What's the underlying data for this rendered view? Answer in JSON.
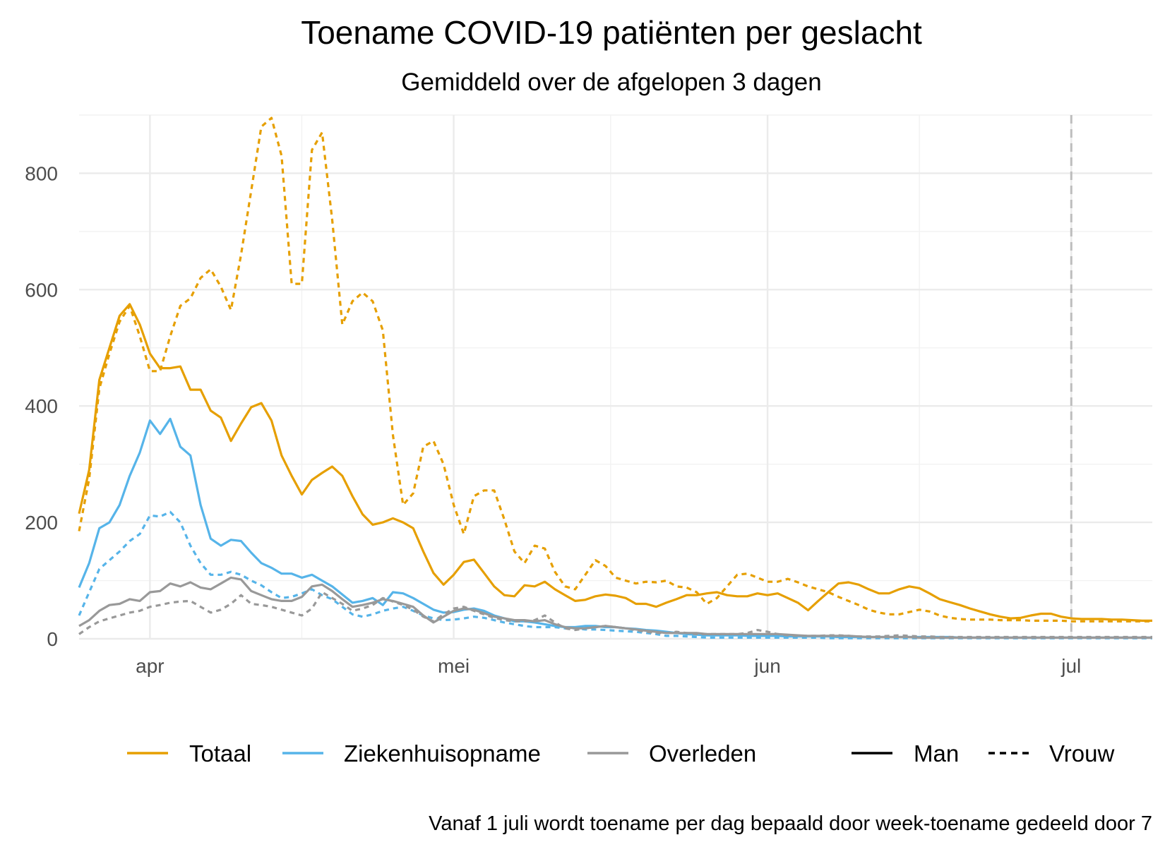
{
  "chart_data": {
    "type": "line",
    "title": "Toename COVID-19 patiënten per geslacht",
    "subtitle": "Gemiddeld over de afgelopen 3 dagen",
    "caption": "Vanaf 1 juli wordt toename per dag bepaald door week-toename gedeeld door 7",
    "xlabel": "",
    "ylabel": "",
    "ylim": [
      0,
      900
    ],
    "y_ticks": [
      0,
      200,
      400,
      600,
      800
    ],
    "x_axis": {
      "type": "date",
      "range": [
        "2020-03-25",
        "2020-07-09"
      ],
      "ticks": [
        {
          "date": "2020-04-01",
          "label": "apr"
        },
        {
          "date": "2020-05-01",
          "label": "mei"
        },
        {
          "date": "2020-06-01",
          "label": "jun"
        },
        {
          "date": "2020-07-01",
          "label": "jul"
        }
      ],
      "reference_line": "2020-07-01"
    },
    "grid": true,
    "legend_position": "bottom",
    "legend": {
      "color": [
        {
          "label": "Totaal",
          "color": "#E69F00"
        },
        {
          "label": "Ziekenhuisopname",
          "color": "#56B4E9"
        },
        {
          "label": "Overleden",
          "color": "#999999"
        }
      ],
      "linetype": [
        {
          "label": "Man",
          "dash": "solid"
        },
        {
          "label": "Vrouw",
          "dash": "dashed"
        }
      ]
    },
    "series": [
      {
        "name": "Totaal",
        "linetype": "Man",
        "color": "#E69F00",
        "dash": "solid",
        "start_date": "2020-03-25",
        "values": [
          215,
          290,
          445,
          500,
          555,
          575,
          540,
          490,
          465,
          465,
          468,
          428,
          428,
          392,
          380,
          340,
          370,
          398,
          405,
          375,
          315,
          280,
          248,
          273,
          285,
          296,
          280,
          245,
          214,
          196,
          200,
          207,
          200,
          190,
          150,
          113,
          93,
          110,
          132,
          136,
          113,
          90,
          75,
          73,
          92,
          90,
          98,
          85,
          75,
          65,
          67,
          73,
          76,
          74,
          70,
          60,
          60,
          55,
          62,
          68,
          75,
          75,
          78,
          80,
          75,
          73,
          73,
          78,
          75,
          78,
          70,
          62,
          49,
          65,
          80,
          95,
          97,
          93,
          85,
          78,
          78,
          85,
          90,
          87,
          78,
          68,
          63,
          58,
          52,
          47,
          42,
          38,
          35,
          36,
          40,
          43,
          43,
          38,
          35,
          34,
          34,
          34,
          33,
          33,
          32,
          31,
          31
        ]
      },
      {
        "name": "Totaal",
        "linetype": "Vrouw",
        "color": "#E69F00",
        "dash": "dashed",
        "start_date": "2020-03-25",
        "values": [
          185,
          275,
          430,
          490,
          545,
          572,
          520,
          460,
          460,
          520,
          572,
          585,
          620,
          635,
          605,
          565,
          660,
          770,
          880,
          895,
          830,
          610,
          610,
          840,
          870,
          720,
          540,
          580,
          595,
          580,
          530,
          350,
          230,
          250,
          330,
          340,
          300,
          230,
          180,
          245,
          255,
          255,
          205,
          150,
          130,
          160,
          155,
          115,
          90,
          85,
          110,
          135,
          125,
          105,
          100,
          95,
          98,
          97,
          100,
          90,
          88,
          80,
          60,
          70,
          90,
          110,
          112,
          105,
          98,
          98,
          103,
          97,
          90,
          85,
          80,
          72,
          65,
          58,
          50,
          45,
          42,
          42,
          46,
          50,
          47,
          40,
          36,
          34,
          33,
          33,
          33,
          32,
          32,
          32,
          31,
          31,
          31,
          31,
          30,
          30,
          30,
          30,
          30,
          30,
          30,
          30,
          30
        ]
      },
      {
        "name": "Ziekenhuisopname",
        "linetype": "Man",
        "color": "#56B4E9",
        "dash": "solid",
        "start_date": "2020-03-25",
        "values": [
          88,
          130,
          190,
          200,
          230,
          280,
          320,
          375,
          352,
          378,
          330,
          315,
          230,
          172,
          160,
          170,
          168,
          148,
          130,
          122,
          112,
          112,
          105,
          110,
          100,
          90,
          76,
          62,
          65,
          70,
          58,
          80,
          78,
          70,
          60,
          50,
          45,
          46,
          50,
          52,
          48,
          40,
          35,
          30,
          30,
          28,
          25,
          22,
          20,
          20,
          22,
          22,
          20,
          20,
          18,
          17,
          15,
          14,
          12,
          10,
          8,
          7,
          6,
          6,
          6,
          6,
          5,
          5,
          5,
          5,
          4,
          4,
          4,
          4,
          4,
          3,
          3,
          3,
          3,
          3,
          3,
          3,
          3,
          3,
          3,
          3,
          3,
          2,
          2,
          2,
          2,
          2,
          2,
          2,
          2,
          2,
          2,
          2,
          2,
          2,
          2,
          2,
          2,
          2,
          2,
          2,
          2
        ]
      },
      {
        "name": "Ziekenhuisopname",
        "linetype": "Vrouw",
        "color": "#56B4E9",
        "dash": "dashed",
        "start_date": "2020-03-25",
        "values": [
          40,
          80,
          120,
          135,
          150,
          168,
          180,
          212,
          210,
          218,
          200,
          160,
          130,
          110,
          110,
          115,
          110,
          100,
          92,
          80,
          70,
          72,
          78,
          85,
          75,
          68,
          55,
          42,
          38,
          42,
          48,
          52,
          55,
          48,
          40,
          35,
          32,
          33,
          35,
          38,
          36,
          32,
          28,
          25,
          22,
          20,
          20,
          20,
          18,
          18,
          16,
          16,
          15,
          14,
          13,
          12,
          10,
          8,
          5,
          5,
          4,
          3,
          2,
          2,
          2,
          2,
          2,
          2,
          2,
          2,
          2,
          2,
          2,
          2,
          1,
          1,
          1,
          1,
          1,
          1,
          1,
          1,
          1,
          1,
          1,
          1,
          1,
          1,
          1,
          1,
          1,
          1,
          1,
          1,
          1,
          1,
          1,
          1,
          1,
          1,
          1,
          1,
          1,
          1,
          1,
          1,
          1
        ]
      },
      {
        "name": "Overleden",
        "linetype": "Man",
        "color": "#999999",
        "dash": "solid",
        "start_date": "2020-03-25",
        "values": [
          22,
          32,
          48,
          58,
          60,
          68,
          65,
          80,
          82,
          95,
          90,
          97,
          88,
          85,
          95,
          105,
          102,
          82,
          75,
          68,
          65,
          65,
          72,
          90,
          93,
          82,
          68,
          55,
          58,
          62,
          68,
          65,
          60,
          55,
          40,
          28,
          38,
          48,
          52,
          50,
          44,
          38,
          35,
          32,
          32,
          30,
          32,
          25,
          20,
          18,
          18,
          20,
          22,
          20,
          18,
          16,
          14,
          12,
          10,
          10,
          10,
          10,
          8,
          8,
          8,
          8,
          8,
          8,
          8,
          8,
          7,
          6,
          5,
          5,
          5,
          5,
          5,
          4,
          3,
          3,
          3,
          3,
          3,
          2,
          2,
          2,
          2,
          2,
          2,
          2,
          2,
          2,
          2,
          2,
          2,
          2,
          2,
          2,
          2,
          2,
          2,
          2,
          2,
          2,
          2,
          2,
          2
        ]
      },
      {
        "name": "Overleden",
        "linetype": "Vrouw",
        "color": "#999999",
        "dash": "dashed",
        "start_date": "2020-03-25",
        "values": [
          8,
          20,
          30,
          35,
          40,
          45,
          48,
          55,
          58,
          62,
          64,
          65,
          55,
          45,
          50,
          60,
          75,
          60,
          58,
          55,
          50,
          45,
          40,
          52,
          80,
          70,
          60,
          48,
          52,
          58,
          70,
          64,
          58,
          50,
          38,
          30,
          42,
          52,
          55,
          48,
          42,
          36,
          32,
          30,
          30,
          32,
          40,
          28,
          18,
          15,
          18,
          20,
          22,
          20,
          18,
          15,
          12,
          10,
          10,
          12,
          10,
          8,
          8,
          8,
          8,
          8,
          10,
          15,
          12,
          8,
          6,
          5,
          5,
          5,
          6,
          6,
          5,
          4,
          4,
          4,
          5,
          6,
          5,
          4,
          4,
          3,
          3,
          3,
          3,
          3,
          3,
          3,
          3,
          3,
          3,
          3,
          3,
          3,
          3,
          3,
          3,
          3,
          3,
          3,
          3,
          3,
          3
        ]
      }
    ]
  }
}
